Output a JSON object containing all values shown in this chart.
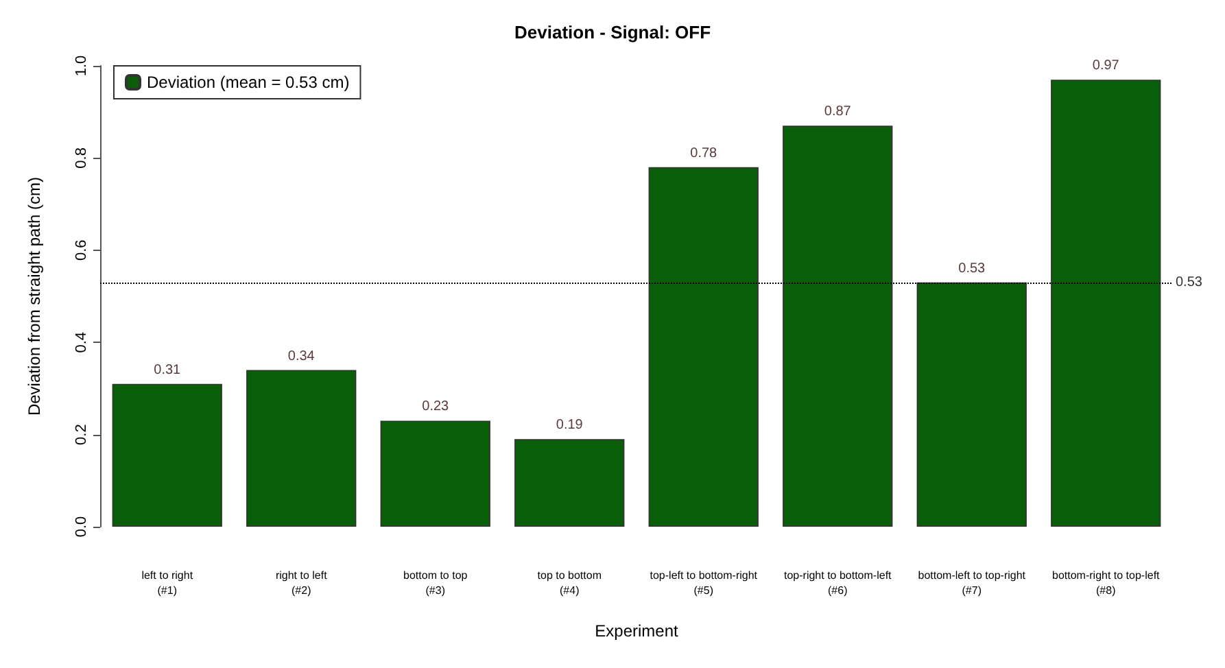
{
  "chart_data": {
    "type": "bar",
    "title": "Deviation - Signal: OFF",
    "xlabel": "Experiment",
    "ylabel": "Deviation from straight path (cm)",
    "categories": [
      "left to right\n(#1)",
      "right to left\n(#2)",
      "bottom to top\n(#3)",
      "top to bottom\n(#4)",
      "top-left to bottom-right\n(#5)",
      "top-right to bottom-left\n(#6)",
      "bottom-left to top-right\n(#7)",
      "bottom-right to top-left\n(#8)"
    ],
    "series": [
      {
        "name": "Deviation (mean = 0.53 cm)",
        "color": "#0a5e0a",
        "values": [
          0.31,
          0.34,
          0.23,
          0.19,
          0.78,
          0.87,
          0.53,
          0.97
        ]
      }
    ],
    "ylim": [
      0,
      1.0
    ],
    "yticks": [
      {
        "value": 0,
        "label": "0.0"
      },
      0.2,
      0.4,
      0.6,
      0.8,
      {
        "value": 1,
        "label": "1.0"
      }
    ],
    "ref_lines": [
      {
        "axis": "y",
        "value": 0.53,
        "label": "0.53",
        "line_style": "dotted",
        "color": "#000000"
      }
    ],
    "data_labels": true,
    "grid": false,
    "legend": "top left"
  }
}
